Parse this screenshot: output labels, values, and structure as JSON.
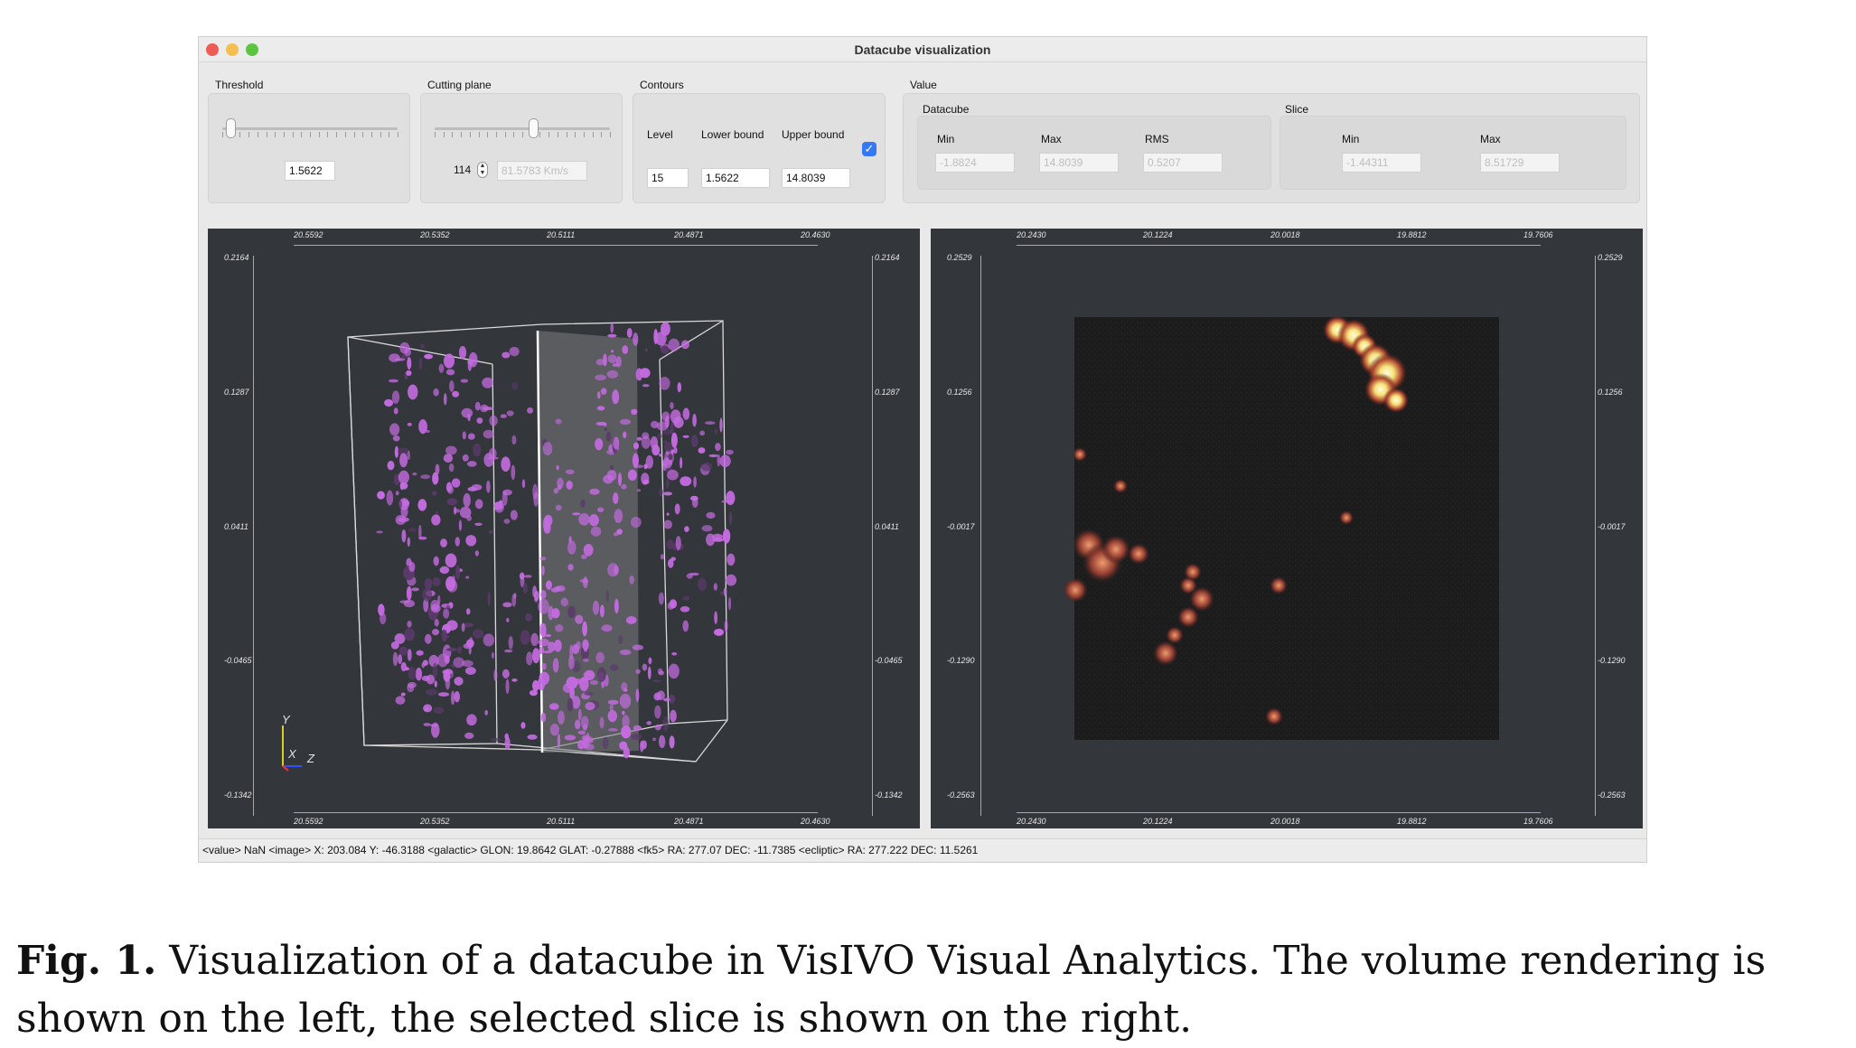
{
  "window": {
    "title": "Datacube visualization",
    "traffic_lights": {
      "close": "#ee5c56",
      "minimize": "#f4bf4f",
      "zoom": "#5bc440"
    }
  },
  "threshold": {
    "label": "Threshold",
    "value": "1.5622",
    "slider_position": 0.02
  },
  "cutting_plane": {
    "label": "Cutting plane",
    "spin_value": "114",
    "velocity": "81.5783 Km/s",
    "slider_position": 0.57
  },
  "contours": {
    "label": "Contours",
    "level_label": "Level",
    "lower_label": "Lower bound",
    "upper_label": "Upper bound",
    "level": "15",
    "lower": "1.5622",
    "upper": "14.8039",
    "enabled": true
  },
  "value": {
    "label": "Value",
    "datacube": {
      "label": "Datacube",
      "min_label": "Min",
      "max_label": "Max",
      "rms_label": "RMS",
      "min": "-1.8824",
      "max": "14.8039",
      "rms": "0.5207"
    },
    "slice": {
      "label": "Slice",
      "min_label": "Min",
      "max_label": "Max",
      "min": "-1.44311",
      "max": "8.51729"
    }
  },
  "volume_view": {
    "x_ticks": [
      "20.5592",
      "20.5352",
      "20.5111",
      "20.4871",
      "20.4630"
    ],
    "y_ticks": [
      "0.2164",
      "0.1287",
      "0.0411",
      "-0.0465",
      "-0.1342"
    ],
    "axes_labels": {
      "y": "Y",
      "x": "X",
      "z": "Z"
    },
    "blob_color": "#c46be0"
  },
  "slice_view": {
    "x_ticks": [
      "20.2430",
      "20.1224",
      "20.0018",
      "19.8812",
      "19.7606"
    ],
    "y_ticks": [
      "0.2529",
      "0.1256",
      "-0.0017",
      "-0.1290",
      "-0.2563"
    ]
  },
  "status": "<value> NaN <image> X: 203.084 Y: -46.3188 <galactic> GLON: 19.8642 GLAT: -0.27888 <fk5> RA: 277.07 DEC: -11.7385 <ecliptic> RA: 277.222 DEC: 11.5261",
  "caption": {
    "fig": "Fig. 1.",
    "text": "Visualization of a datacube in VisIVO Visual Analytics. The volume rendering is shown on the left, the selected slice is shown on the right."
  }
}
